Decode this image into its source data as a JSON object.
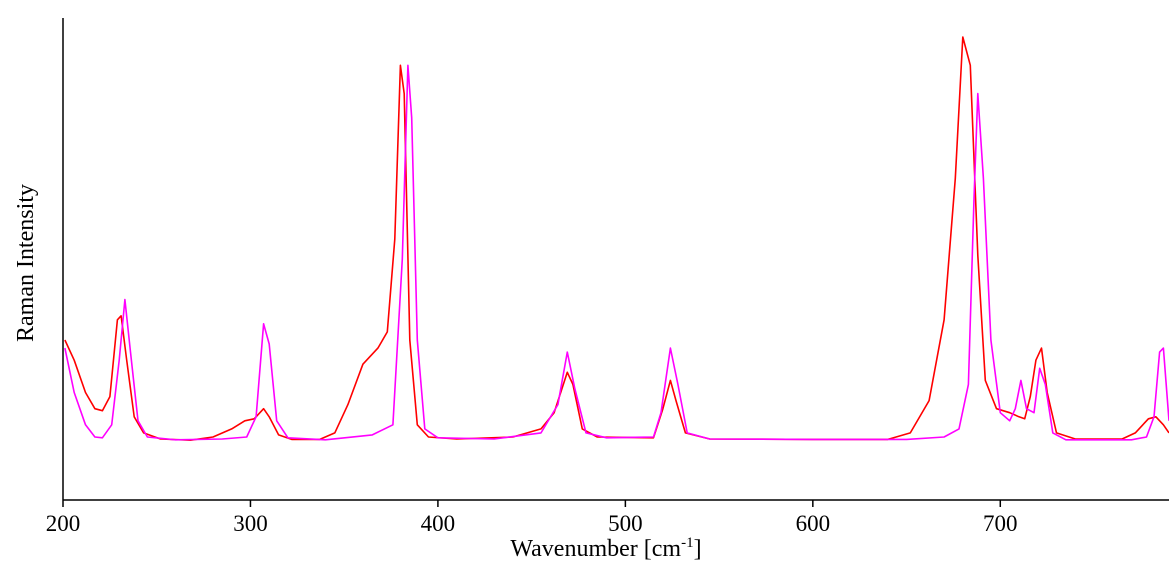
{
  "chart_data": {
    "type": "line",
    "title": "",
    "xlabel": "Wavenumber [cm",
    "xlabel_sup": "-1",
    "xlabel_end": "]",
    "ylabel": "Raman Intensity",
    "xlim": [
      200,
      790
    ],
    "ylim": [
      0,
      1.0
    ],
    "x_ticks": [
      200,
      300,
      400,
      500,
      600,
      700
    ],
    "y_ticks_shown": false,
    "grid": false,
    "legend": "none",
    "series": [
      {
        "color": "#ff0000",
        "points": [
          [
            201,
            0.25
          ],
          [
            206,
            0.2
          ],
          [
            212,
            0.12
          ],
          [
            217,
            0.08
          ],
          [
            221,
            0.075
          ],
          [
            225,
            0.11
          ],
          [
            229,
            0.3
          ],
          [
            231,
            0.31
          ],
          [
            234,
            0.2
          ],
          [
            238,
            0.06
          ],
          [
            243,
            0.02
          ],
          [
            252,
            0.005
          ],
          [
            268,
            0.002
          ],
          [
            280,
            0.01
          ],
          [
            290,
            0.03
          ],
          [
            297,
            0.05
          ],
          [
            302,
            0.055
          ],
          [
            307,
            0.08
          ],
          [
            310,
            0.06
          ],
          [
            315,
            0.015
          ],
          [
            322,
            0.004
          ],
          [
            337,
            0.004
          ],
          [
            345,
            0.02
          ],
          [
            352,
            0.09
          ],
          [
            360,
            0.19
          ],
          [
            368,
            0.23
          ],
          [
            373,
            0.27
          ],
          [
            377,
            0.5
          ],
          [
            380,
            0.93
          ],
          [
            382,
            0.86
          ],
          [
            385,
            0.25
          ],
          [
            389,
            0.04
          ],
          [
            395,
            0.01
          ],
          [
            410,
            0.005
          ],
          [
            440,
            0.01
          ],
          [
            455,
            0.03
          ],
          [
            462,
            0.07
          ],
          [
            469,
            0.17
          ],
          [
            472,
            0.14
          ],
          [
            477,
            0.03
          ],
          [
            485,
            0.01
          ],
          [
            515,
            0.008
          ],
          [
            520,
            0.08
          ],
          [
            524,
            0.15
          ],
          [
            527,
            0.1
          ],
          [
            532,
            0.02
          ],
          [
            545,
            0.005
          ],
          [
            600,
            0.004
          ],
          [
            640,
            0.004
          ],
          [
            652,
            0.02
          ],
          [
            662,
            0.1
          ],
          [
            670,
            0.3
          ],
          [
            676,
            0.65
          ],
          [
            680,
            1.0
          ],
          [
            684,
            0.93
          ],
          [
            688,
            0.46
          ],
          [
            692,
            0.15
          ],
          [
            698,
            0.08
          ],
          [
            705,
            0.07
          ],
          [
            710,
            0.06
          ],
          [
            713,
            0.055
          ],
          [
            716,
            0.11
          ],
          [
            719,
            0.2
          ],
          [
            722,
            0.23
          ],
          [
            725,
            0.12
          ],
          [
            730,
            0.02
          ],
          [
            740,
            0.005
          ],
          [
            765,
            0.005
          ],
          [
            772,
            0.02
          ],
          [
            779,
            0.055
          ],
          [
            783,
            0.06
          ],
          [
            787,
            0.04
          ],
          [
            790,
            0.02
          ]
        ]
      },
      {
        "color": "#ff00ff",
        "points": [
          [
            201,
            0.23
          ],
          [
            206,
            0.12
          ],
          [
            212,
            0.04
          ],
          [
            217,
            0.01
          ],
          [
            221,
            0.008
          ],
          [
            226,
            0.04
          ],
          [
            230,
            0.2
          ],
          [
            233,
            0.35
          ],
          [
            236,
            0.22
          ],
          [
            240,
            0.05
          ],
          [
            245,
            0.01
          ],
          [
            260,
            0.003
          ],
          [
            285,
            0.005
          ],
          [
            298,
            0.01
          ],
          [
            303,
            0.06
          ],
          [
            307,
            0.29
          ],
          [
            310,
            0.24
          ],
          [
            314,
            0.05
          ],
          [
            320,
            0.008
          ],
          [
            340,
            0.003
          ],
          [
            365,
            0.015
          ],
          [
            376,
            0.04
          ],
          [
            381,
            0.45
          ],
          [
            384,
            0.93
          ],
          [
            386,
            0.8
          ],
          [
            389,
            0.25
          ],
          [
            393,
            0.03
          ],
          [
            400,
            0.008
          ],
          [
            430,
            0.005
          ],
          [
            455,
            0.02
          ],
          [
            464,
            0.09
          ],
          [
            469,
            0.22
          ],
          [
            473,
            0.13
          ],
          [
            479,
            0.02
          ],
          [
            490,
            0.008
          ],
          [
            515,
            0.01
          ],
          [
            519,
            0.07
          ],
          [
            524,
            0.23
          ],
          [
            528,
            0.14
          ],
          [
            533,
            0.02
          ],
          [
            545,
            0.005
          ],
          [
            600,
            0.004
          ],
          [
            650,
            0.004
          ],
          [
            670,
            0.01
          ],
          [
            678,
            0.03
          ],
          [
            683,
            0.14
          ],
          [
            686,
            0.6
          ],
          [
            688,
            0.86
          ],
          [
            691,
            0.65
          ],
          [
            695,
            0.25
          ],
          [
            700,
            0.07
          ],
          [
            705,
            0.05
          ],
          [
            708,
            0.08
          ],
          [
            711,
            0.15
          ],
          [
            714,
            0.08
          ],
          [
            718,
            0.07
          ],
          [
            721,
            0.18
          ],
          [
            724,
            0.14
          ],
          [
            728,
            0.02
          ],
          [
            735,
            0.003
          ],
          [
            770,
            0.003
          ],
          [
            778,
            0.01
          ],
          [
            782,
            0.06
          ],
          [
            785,
            0.22
          ],
          [
            787,
            0.23
          ],
          [
            790,
            0.05
          ]
        ]
      }
    ]
  }
}
